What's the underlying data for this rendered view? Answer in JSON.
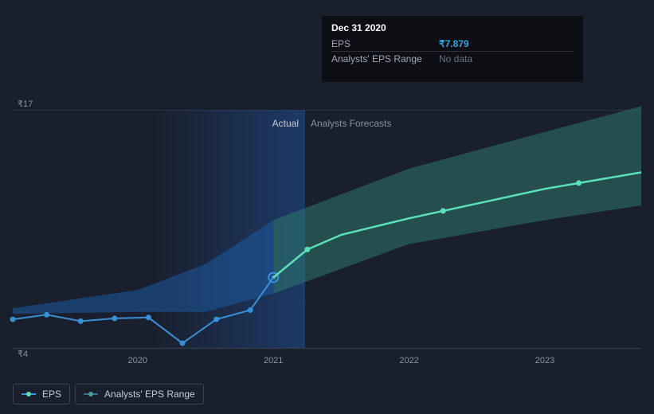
{
  "chart": {
    "type": "line",
    "background_color": "#1a1f2e",
    "grid_color": "#2a3140",
    "axis_line_color": "#3a4250",
    "text_color": "#8a919e",
    "currency_symbol": "₹",
    "y_axis": {
      "min": 4,
      "max": 17,
      "top_label": "₹17",
      "bottom_label": "₹4"
    },
    "x_axis": {
      "min": 2019.08,
      "max": 2023.71,
      "ticks": [
        {
          "value": 2020,
          "label": "2020"
        },
        {
          "value": 2021,
          "label": "2021"
        },
        {
          "value": 2022,
          "label": "2022"
        },
        {
          "value": 2023,
          "label": "2023"
        }
      ]
    },
    "actual_shade": {
      "start_x": 2020.12,
      "end_x": 2021.0,
      "gradient_from": "rgba(30,60,110,0.0)",
      "gradient_to": "rgba(30,80,150,0.55)"
    },
    "section_labels": {
      "actual": "Actual",
      "forecast": "Analysts Forecasts"
    },
    "series": {
      "eps_actual": {
        "color": "#3a8ed4",
        "stroke_width": 2,
        "marker_radius": 3.5,
        "points": [
          {
            "x": 2019.08,
            "y": 5.6
          },
          {
            "x": 2019.33,
            "y": 5.85
          },
          {
            "x": 2019.58,
            "y": 5.5
          },
          {
            "x": 2019.83,
            "y": 5.65
          },
          {
            "x": 2020.08,
            "y": 5.7
          },
          {
            "x": 2020.33,
            "y": 4.3
          },
          {
            "x": 2020.58,
            "y": 5.6
          },
          {
            "x": 2020.83,
            "y": 6.1
          },
          {
            "x": 2021.0,
            "y": 7.879,
            "highlight": true
          }
        ]
      },
      "eps_forecast": {
        "color": "#5ce0b9",
        "stroke_width": 2.5,
        "marker_radius": 3.5,
        "points": [
          {
            "x": 2021.0,
            "y": 7.879
          },
          {
            "x": 2021.25,
            "y": 9.4
          },
          {
            "x": 2021.5,
            "y": 10.2
          },
          {
            "x": 2022.0,
            "y": 11.1
          },
          {
            "x": 2022.5,
            "y": 11.9
          },
          {
            "x": 2023.0,
            "y": 12.7
          },
          {
            "x": 2023.71,
            "y": 13.6
          }
        ],
        "visible_markers_at": [
          2021.25,
          2022.25,
          2023.25
        ]
      },
      "range_band_actual": {
        "fill": "#1e5a9e",
        "opacity": 0.55,
        "upper": [
          {
            "x": 2019.08,
            "y": 6.2
          },
          {
            "x": 2020.0,
            "y": 7.2
          },
          {
            "x": 2020.5,
            "y": 8.6
          },
          {
            "x": 2021.0,
            "y": 11.0
          }
        ],
        "lower": [
          {
            "x": 2019.08,
            "y": 5.9
          },
          {
            "x": 2020.0,
            "y": 6.0
          },
          {
            "x": 2020.5,
            "y": 6.0
          },
          {
            "x": 2021.0,
            "y": 7.0
          }
        ]
      },
      "range_band_forecast": {
        "fill": "#2f7f6e",
        "opacity": 0.5,
        "upper": [
          {
            "x": 2021.0,
            "y": 11.0
          },
          {
            "x": 2022.0,
            "y": 13.8
          },
          {
            "x": 2023.0,
            "y": 15.8
          },
          {
            "x": 2023.71,
            "y": 17.2
          }
        ],
        "lower": [
          {
            "x": 2021.0,
            "y": 7.0
          },
          {
            "x": 2022.0,
            "y": 9.7
          },
          {
            "x": 2023.0,
            "y": 11.0
          },
          {
            "x": 2023.71,
            "y": 11.8
          }
        ]
      }
    }
  },
  "tooltip": {
    "date": "Dec 31 2020",
    "rows": [
      {
        "label": "EPS",
        "currency": "₹",
        "value": "7.879",
        "color": "#33a5e0"
      },
      {
        "label": "Analysts' EPS Range",
        "value": "No data",
        "nodata": true
      }
    ]
  },
  "legend": {
    "items": [
      {
        "name": "eps",
        "label": "EPS",
        "line_color": "#3a8ed4",
        "dot_color": "#5ce0b9"
      },
      {
        "name": "eps-range",
        "label": "Analysts' EPS Range",
        "line_color": "#3a6f8a",
        "dot_color": "#4aa08e"
      }
    ]
  }
}
